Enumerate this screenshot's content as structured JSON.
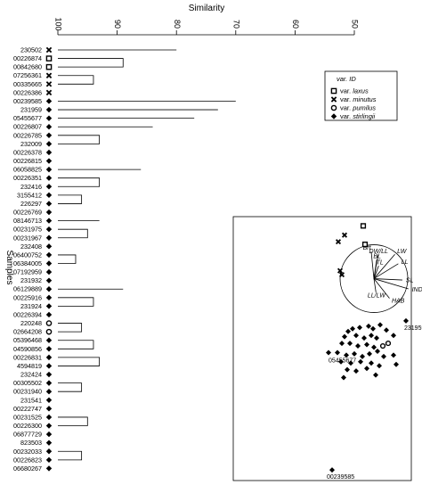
{
  "chart_data": [
    {
      "type": "dendrogram",
      "title": "Similarity",
      "ylabel": "Samples",
      "xlim": [
        100,
        50
      ],
      "x_ticks": [
        100,
        90,
        80,
        70,
        60,
        50
      ],
      "leaves": [
        {
          "id": "230502",
          "var": "minutus"
        },
        {
          "id": "00226874",
          "var": "laxus"
        },
        {
          "id": "00842680",
          "var": "laxus"
        },
        {
          "id": "07256361",
          "var": "minutus"
        },
        {
          "id": "00335665",
          "var": "minutus"
        },
        {
          "id": "00226386",
          "var": "minutus"
        },
        {
          "id": "00239585",
          "var": "stirlingii"
        },
        {
          "id": "231959",
          "var": "stirlingii"
        },
        {
          "id": "05455677",
          "var": "stirlingii"
        },
        {
          "id": "00226807",
          "var": "stirlingii"
        },
        {
          "id": "00226785",
          "var": "stirlingii"
        },
        {
          "id": "232009",
          "var": "stirlingii"
        },
        {
          "id": "00226378",
          "var": "stirlingii"
        },
        {
          "id": "00226815",
          "var": "stirlingii"
        },
        {
          "id": "06058825",
          "var": "stirlingii"
        },
        {
          "id": "00226351",
          "var": "stirlingii"
        },
        {
          "id": "232416",
          "var": "stirlingii"
        },
        {
          "id": "3155412",
          "var": "stirlingii"
        },
        {
          "id": "226297",
          "var": "stirlingii"
        },
        {
          "id": "00226769",
          "var": "stirlingii"
        },
        {
          "id": "08146713",
          "var": "stirlingii"
        },
        {
          "id": "00231975",
          "var": "stirlingii"
        },
        {
          "id": "00231967",
          "var": "stirlingii"
        },
        {
          "id": "232408",
          "var": "stirlingii"
        },
        {
          "id": "06400752",
          "var": "stirlingii"
        },
        {
          "id": "06384005",
          "var": "stirlingii"
        },
        {
          "id": "07192959",
          "var": "stirlingii"
        },
        {
          "id": "231932",
          "var": "stirlingii"
        },
        {
          "id": "06129889",
          "var": "stirlingii"
        },
        {
          "id": "00225916",
          "var": "stirlingii"
        },
        {
          "id": "231924",
          "var": "stirlingii"
        },
        {
          "id": "00226394",
          "var": "stirlingii"
        },
        {
          "id": "220248",
          "var": "pumilus"
        },
        {
          "id": "02664208",
          "var": "pumilus"
        },
        {
          "id": "05396468",
          "var": "stirlingii"
        },
        {
          "id": "04590856",
          "var": "stirlingii"
        },
        {
          "id": "00226831",
          "var": "stirlingii"
        },
        {
          "id": "4594819",
          "var": "stirlingii"
        },
        {
          "id": "232424",
          "var": "stirlingii"
        },
        {
          "id": "00305502",
          "var": "stirlingii"
        },
        {
          "id": "00231940",
          "var": "stirlingii"
        },
        {
          "id": "231541",
          "var": "stirlingii"
        },
        {
          "id": "00222747",
          "var": "stirlingii"
        },
        {
          "id": "00231525",
          "var": "stirlingii"
        },
        {
          "id": "00226300",
          "var": "stirlingii"
        },
        {
          "id": "06877729",
          "var": "stirlingii"
        },
        {
          "id": "823503",
          "var": "stirlingii"
        },
        {
          "id": "00232033",
          "var": "stirlingii"
        },
        {
          "id": "00226823",
          "var": "stirlingii"
        },
        {
          "id": "06680267",
          "var": "stirlingii"
        }
      ],
      "merges": [
        [
          1,
          2,
          89
        ],
        [
          3,
          4,
          94
        ],
        [
          101,
          5,
          88
        ],
        [
          100,
          102,
          79
        ],
        [
          0,
          103,
          80
        ],
        [
          10,
          11,
          93
        ],
        [
          105,
          12,
          89
        ],
        [
          106,
          13,
          85
        ],
        [
          9,
          107,
          84
        ],
        [
          15,
          16,
          93
        ],
        [
          14,
          109,
          86
        ],
        [
          17,
          18,
          96
        ],
        [
          110,
          111,
          84
        ],
        [
          112,
          19,
          83
        ],
        [
          108,
          113,
          80
        ],
        [
          21,
          22,
          95
        ],
        [
          20,
          115,
          93
        ],
        [
          116,
          23,
          88
        ],
        [
          24,
          25,
          97
        ],
        [
          118,
          26,
          91
        ],
        [
          119,
          27,
          90
        ],
        [
          117,
          120,
          85
        ],
        [
          29,
          30,
          94
        ],
        [
          28,
          122,
          89
        ],
        [
          123,
          31,
          86
        ],
        [
          32,
          33,
          96
        ],
        [
          124,
          125,
          84
        ],
        [
          121,
          126,
          82
        ],
        [
          114,
          127,
          79
        ],
        [
          34,
          35,
          94
        ],
        [
          36,
          37,
          93
        ],
        [
          129,
          130,
          89
        ],
        [
          131,
          38,
          87
        ],
        [
          39,
          40,
          96
        ],
        [
          133,
          41,
          93
        ],
        [
          134,
          42,
          91
        ],
        [
          132,
          135,
          85
        ],
        [
          43,
          44,
          95
        ],
        [
          137,
          45,
          92
        ],
        [
          138,
          46,
          90
        ],
        [
          47,
          48,
          96
        ],
        [
          140,
          49,
          93
        ],
        [
          139,
          141,
          86
        ],
        [
          136,
          142,
          83
        ],
        [
          128,
          143,
          78
        ],
        [
          8,
          144,
          77
        ],
        [
          7,
          145,
          73
        ],
        [
          6,
          146,
          70
        ],
        [
          104,
          147,
          65
        ]
      ]
    },
    {
      "type": "scatter",
      "legend": {
        "title": "var. ID",
        "entries": [
          {
            "key": "laxus",
            "prefix": "var.",
            "name": "laxus",
            "marker": "open-square"
          },
          {
            "key": "minutus",
            "prefix": "var.",
            "name": "minutus",
            "marker": "cross"
          },
          {
            "key": "pumilus",
            "prefix": "var.",
            "name": "pumilus",
            "marker": "open-circle"
          },
          {
            "key": "stirlingii",
            "prefix": "var.",
            "name": "stirlingii",
            "marker": "filled-diamond"
          }
        ],
        "placement": "top-right"
      },
      "xlim": [
        -1,
        1
      ],
      "ylim": [
        -1,
        1
      ],
      "points": [
        {
          "var": "laxus",
          "x": 0.46,
          "y": 0.93
        },
        {
          "var": "laxus",
          "x": 0.48,
          "y": 0.79
        },
        {
          "var": "minutus",
          "x": 0.25,
          "y": 0.86
        },
        {
          "var": "minutus",
          "x": 0.18,
          "y": 0.81
        },
        {
          "var": "minutus",
          "x": 0.2,
          "y": 0.59
        },
        {
          "var": "minutus",
          "x": 0.22,
          "y": 0.56
        },
        {
          "var": "pumilus",
          "x": 0.68,
          "y": 0.02
        },
        {
          "var": "pumilus",
          "x": 0.74,
          "y": 0.04
        },
        {
          "var": "stirlingii",
          "x": 0.07,
          "y": -0.03,
          "label": "05455677"
        },
        {
          "var": "stirlingii",
          "x": 0.94,
          "y": 0.21,
          "label": "231959"
        },
        {
          "var": "stirlingii",
          "x": 0.11,
          "y": -0.92,
          "label": "00239585"
        },
        {
          "var": "stirlingii",
          "x": 0.29,
          "y": 0.13
        },
        {
          "var": "stirlingii",
          "x": 0.34,
          "y": 0.15
        },
        {
          "var": "stirlingii",
          "x": 0.42,
          "y": 0.16
        },
        {
          "var": "stirlingii",
          "x": 0.52,
          "y": 0.17
        },
        {
          "var": "stirlingii",
          "x": 0.57,
          "y": 0.15
        },
        {
          "var": "stirlingii",
          "x": 0.65,
          "y": 0.18
        },
        {
          "var": "stirlingii",
          "x": 0.72,
          "y": 0.14
        },
        {
          "var": "stirlingii",
          "x": 0.25,
          "y": 0.09
        },
        {
          "var": "stirlingii",
          "x": 0.38,
          "y": 0.1
        },
        {
          "var": "stirlingii",
          "x": 0.47,
          "y": 0.08
        },
        {
          "var": "stirlingii",
          "x": 0.55,
          "y": 0.1
        },
        {
          "var": "stirlingii",
          "x": 0.61,
          "y": 0.08
        },
        {
          "var": "stirlingii",
          "x": 0.8,
          "y": 0.1
        },
        {
          "var": "stirlingii",
          "x": 0.22,
          "y": 0.04
        },
        {
          "var": "stirlingii",
          "x": 0.31,
          "y": 0.04
        },
        {
          "var": "stirlingii",
          "x": 0.4,
          "y": 0.02
        },
        {
          "var": "stirlingii",
          "x": 0.5,
          "y": 0.03
        },
        {
          "var": "stirlingii",
          "x": 0.58,
          "y": 0.01
        },
        {
          "var": "stirlingii",
          "x": 0.17,
          "y": -0.03
        },
        {
          "var": "stirlingii",
          "x": 0.27,
          "y": -0.05
        },
        {
          "var": "stirlingii",
          "x": 0.36,
          "y": -0.04
        },
        {
          "var": "stirlingii",
          "x": 0.45,
          "y": -0.06
        },
        {
          "var": "stirlingii",
          "x": 0.53,
          "y": -0.04
        },
        {
          "var": "stirlingii",
          "x": 0.62,
          "y": -0.02
        },
        {
          "var": "stirlingii",
          "x": 0.69,
          "y": -0.06
        },
        {
          "var": "stirlingii",
          "x": 0.21,
          "y": -0.1
        },
        {
          "var": "stirlingii",
          "x": 0.32,
          "y": -0.11
        },
        {
          "var": "stirlingii",
          "x": 0.43,
          "y": -0.1
        },
        {
          "var": "stirlingii",
          "x": 0.55,
          "y": -0.11
        },
        {
          "var": "stirlingii",
          "x": 0.28,
          "y": -0.16
        },
        {
          "var": "stirlingii",
          "x": 0.38,
          "y": -0.17
        },
        {
          "var": "stirlingii",
          "x": 0.5,
          "y": -0.15
        },
        {
          "var": "stirlingii",
          "x": 0.64,
          "y": -0.13
        },
        {
          "var": "stirlingii",
          "x": 0.8,
          "y": -0.05
        },
        {
          "var": "stirlingii",
          "x": 0.83,
          "y": -0.12
        },
        {
          "var": "stirlingii",
          "x": 0.24,
          "y": -0.22
        },
        {
          "var": "stirlingii",
          "x": 0.6,
          "y": -0.2
        }
      ],
      "vectors": {
        "circle": {
          "cx": 0.58,
          "cy": 0.53,
          "r": 0.38
        },
        "arrows": [
          {
            "label": "Brt",
            "dx": -0.08,
            "dy": 0.8
          },
          {
            "label": "DW/LL",
            "dx": 0.12,
            "dy": 0.7
          },
          {
            "label": "BL",
            "dx": 0.08,
            "dy": 0.55
          },
          {
            "label": "TL",
            "dx": 0.14,
            "dy": 0.38
          },
          {
            "label": "LW",
            "dx": 0.62,
            "dy": 0.72
          },
          {
            "label": "LL",
            "dx": 0.72,
            "dy": 0.44
          },
          {
            "label": "SL",
            "dx": 0.84,
            "dy": -0.04
          },
          {
            "label": "IND",
            "dx": 1.02,
            "dy": -0.3
          },
          {
            "label": "LL/LW",
            "dx": 0.06,
            "dy": -0.4
          },
          {
            "label": "HAB",
            "dx": 0.46,
            "dy": -0.58
          }
        ]
      }
    }
  ]
}
